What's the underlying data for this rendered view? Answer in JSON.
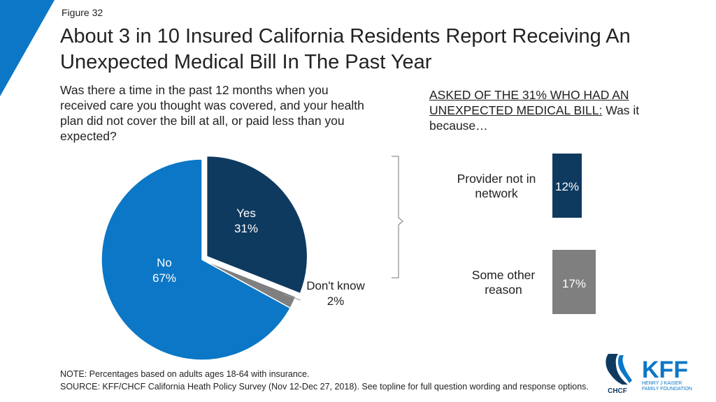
{
  "figure_label": "Figure 32",
  "title": "About 3 in 10 Insured California Residents Report Receiving An Unexpected Medical Bill In The Past Year",
  "question": "Was there a time in the past 12 months when you received care you thought was covered, and your health plan did not cover the bill at all, or paid less than you expected?",
  "followup": {
    "underlined": "ASKED OF THE 31% WHO HAD AN UNEXPECTED MEDICAL BILL:",
    "rest": " Was it because…"
  },
  "colors": {
    "yes": "#0f3a60",
    "no": "#0b77c6",
    "dontknow": "#7f7f7f",
    "bar1": "#0f3a60",
    "bar2": "#7f7f7f",
    "corner": "#0b77c6"
  },
  "chart_data": [
    {
      "type": "pie",
      "slices": [
        {
          "label": "Yes",
          "value": 31,
          "value_label": "31%"
        },
        {
          "label": "Don't know",
          "value": 2,
          "value_label": "2%"
        },
        {
          "label": "No",
          "value": 67,
          "value_label": "67%"
        }
      ],
      "exploded": "Yes"
    },
    {
      "type": "bar",
      "orientation": "vertical",
      "categories": [
        "Provider not in network",
        "Some other reason"
      ],
      "values": [
        12,
        17
      ],
      "value_labels": [
        "12%",
        "17%"
      ]
    }
  ],
  "bar_labels": [
    {
      "line1": "Provider not in",
      "line2": "network"
    },
    {
      "line1": "Some other",
      "line2": "reason"
    }
  ],
  "notes": {
    "note": "NOTE: Percentages based on adults ages 18-64 with insurance.",
    "source": "SOURCE: KFF/CHCF California Heath Policy Survey (Nov 12-Dec 27, 2018). See topline for full question wording and response options."
  },
  "logos": {
    "chcf": "CHCF",
    "kff": "KFF",
    "kff_sub1": "HENRY J KAISER",
    "kff_sub2": "FAMILY FOUNDATION"
  }
}
